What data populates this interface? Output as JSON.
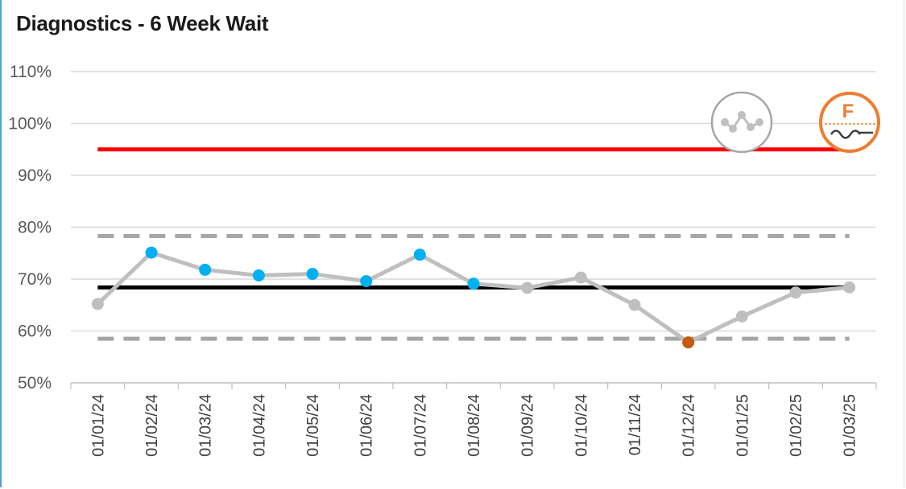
{
  "title": "Diagnostics - 6 Week Wait",
  "colors": {
    "target": "#ff0000",
    "mean": "#000000",
    "limits": "#a6a6a6",
    "series_line": "#bfbfbf",
    "common_cause": "#bfbfbf",
    "improvement": "#00b0f0",
    "concern": "#c55a11",
    "assurance_icon": "#ed7d31",
    "variation_icon": "#a6a6a6"
  },
  "icons": {
    "variation": "common-cause-variation-icon",
    "assurance": "inconsistent-assurance-icon",
    "assurance_letter": "F"
  },
  "chart_data": {
    "type": "line",
    "title": "Diagnostics - 6 Week Wait",
    "x": [
      "01/01/24",
      "01/02/24",
      "01/03/24",
      "01/04/24",
      "01/05/24",
      "01/06/24",
      "01/07/24",
      "01/08/24",
      "01/09/24",
      "01/10/24",
      "01/11/24",
      "01/12/24",
      "01/01/25",
      "01/02/25",
      "01/03/25"
    ],
    "values": [
      65.2,
      75.1,
      71.8,
      70.7,
      71.0,
      69.6,
      74.7,
      69.1,
      68.3,
      70.3,
      65.0,
      57.8,
      62.8,
      67.4,
      68.4
    ],
    "point_types": [
      "common",
      "improvement",
      "improvement",
      "improvement",
      "improvement",
      "improvement",
      "improvement",
      "improvement",
      "common",
      "common",
      "common",
      "concern",
      "common",
      "common",
      "common"
    ],
    "target": 95,
    "mean": 68.4,
    "upper_limit": 78.3,
    "lower_limit": 58.5,
    "ylim": [
      50,
      110
    ],
    "yticks": [
      "50%",
      "60%",
      "70%",
      "80%",
      "90%",
      "100%",
      "110%"
    ],
    "grid": true
  }
}
